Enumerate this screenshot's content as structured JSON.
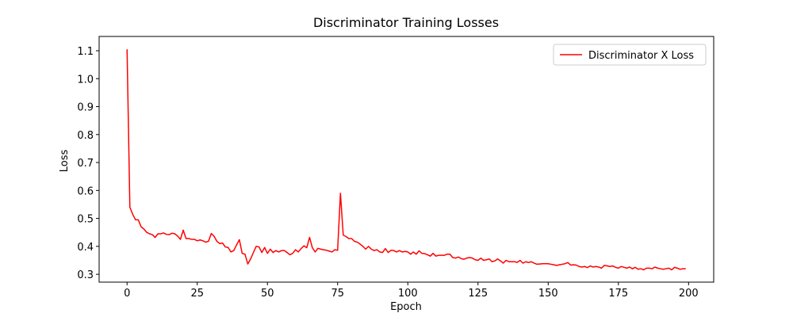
{
  "chart_data": {
    "type": "line",
    "title": "Discriminator Training Losses",
    "x_label": "Epoch",
    "y_label": "Loss",
    "x": [
      0,
      1,
      2,
      3,
      4,
      5,
      6,
      7,
      8,
      9,
      10,
      11,
      12,
      13,
      14,
      15,
      16,
      17,
      18,
      19,
      20,
      21,
      22,
      23,
      24,
      25,
      26,
      27,
      28,
      29,
      30,
      31,
      32,
      33,
      34,
      35,
      36,
      37,
      38,
      39,
      40,
      41,
      42,
      43,
      44,
      45,
      46,
      47,
      48,
      49,
      50,
      51,
      52,
      53,
      54,
      55,
      56,
      57,
      58,
      59,
      60,
      61,
      62,
      63,
      64,
      65,
      66,
      67,
      68,
      69,
      70,
      71,
      72,
      73,
      74,
      75,
      76,
      77,
      78,
      79,
      80,
      81,
      82,
      83,
      84,
      85,
      86,
      87,
      88,
      89,
      90,
      91,
      92,
      93,
      94,
      95,
      96,
      97,
      98,
      99,
      100,
      101,
      102,
      103,
      104,
      105,
      106,
      107,
      108,
      109,
      110,
      111,
      112,
      113,
      114,
      115,
      116,
      117,
      118,
      119,
      120,
      121,
      122,
      123,
      124,
      125,
      126,
      127,
      128,
      129,
      130,
      131,
      132,
      133,
      134,
      135,
      136,
      137,
      138,
      139,
      140,
      141,
      142,
      143,
      144,
      145,
      146,
      147,
      148,
      149,
      150,
      151,
      152,
      153,
      154,
      155,
      156,
      157,
      158,
      159,
      160,
      161,
      162,
      163,
      164,
      165,
      166,
      167,
      168,
      169,
      170,
      171,
      172,
      173,
      174,
      175,
      176,
      177,
      178,
      179,
      180,
      181,
      182,
      183,
      184,
      185,
      186,
      187,
      188,
      189,
      190,
      191,
      192,
      193,
      194,
      195,
      196,
      197,
      198,
      199
    ],
    "series": [
      {
        "name": "Discriminator X Loss",
        "color": "#ff0000",
        "values": [
          1.105,
          0.54,
          0.515,
          0.495,
          0.495,
          0.47,
          0.462,
          0.45,
          0.445,
          0.442,
          0.432,
          0.445,
          0.445,
          0.448,
          0.443,
          0.442,
          0.447,
          0.445,
          0.437,
          0.425,
          0.458,
          0.428,
          0.428,
          0.425,
          0.425,
          0.42,
          0.423,
          0.42,
          0.415,
          0.418,
          0.446,
          0.436,
          0.418,
          0.41,
          0.412,
          0.398,
          0.396,
          0.38,
          0.385,
          0.405,
          0.424,
          0.375,
          0.372,
          0.337,
          0.355,
          0.378,
          0.4,
          0.398,
          0.378,
          0.396,
          0.375,
          0.39,
          0.378,
          0.385,
          0.38,
          0.385,
          0.385,
          0.378,
          0.37,
          0.375,
          0.388,
          0.38,
          0.392,
          0.402,
          0.395,
          0.432,
          0.395,
          0.38,
          0.393,
          0.39,
          0.388,
          0.386,
          0.383,
          0.38,
          0.388,
          0.386,
          0.59,
          0.44,
          0.435,
          0.428,
          0.428,
          0.418,
          0.415,
          0.408,
          0.4,
          0.39,
          0.4,
          0.39,
          0.385,
          0.388,
          0.38,
          0.378,
          0.392,
          0.378,
          0.386,
          0.385,
          0.38,
          0.385,
          0.38,
          0.382,
          0.38,
          0.372,
          0.38,
          0.372,
          0.384,
          0.375,
          0.374,
          0.37,
          0.365,
          0.375,
          0.365,
          0.368,
          0.368,
          0.368,
          0.372,
          0.372,
          0.36,
          0.358,
          0.362,
          0.356,
          0.354,
          0.358,
          0.36,
          0.358,
          0.352,
          0.35,
          0.358,
          0.35,
          0.352,
          0.355,
          0.345,
          0.348,
          0.355,
          0.348,
          0.34,
          0.35,
          0.345,
          0.345,
          0.345,
          0.343,
          0.35,
          0.34,
          0.345,
          0.342,
          0.345,
          0.34,
          0.336,
          0.337,
          0.338,
          0.338,
          0.338,
          0.336,
          0.334,
          0.332,
          0.334,
          0.336,
          0.338,
          0.342,
          0.333,
          0.334,
          0.333,
          0.328,
          0.326,
          0.328,
          0.324,
          0.33,
          0.326,
          0.328,
          0.326,
          0.322,
          0.332,
          0.33,
          0.328,
          0.33,
          0.325,
          0.322,
          0.328,
          0.325,
          0.322,
          0.326,
          0.32,
          0.325,
          0.318,
          0.32,
          0.316,
          0.322,
          0.322,
          0.32,
          0.326,
          0.322,
          0.32,
          0.318,
          0.32,
          0.322,
          0.316,
          0.325,
          0.322,
          0.318,
          0.32,
          0.32
        ]
      }
    ],
    "xlim": [
      -9.95,
      208.95
    ],
    "ylim": [
      0.272,
      1.151
    ],
    "xticks": [
      0,
      25,
      50,
      75,
      100,
      125,
      150,
      175,
      200
    ],
    "yticks": [
      0.3,
      0.4,
      0.5,
      0.6,
      0.7,
      0.8,
      0.9,
      {
        "value": 1.0,
        "label": "1.0"
      },
      1.1
    ],
    "legend": "upper right"
  }
}
